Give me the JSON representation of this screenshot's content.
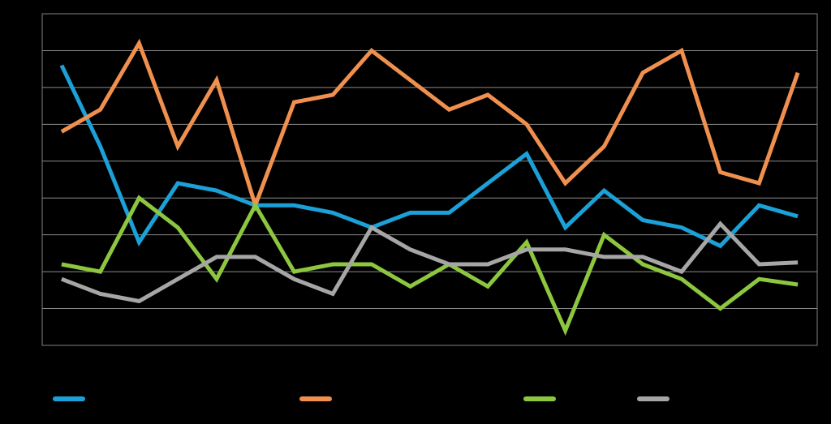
{
  "chart_data": {
    "type": "line",
    "title": "",
    "xlabel": "",
    "ylabel": "",
    "x": [
      1,
      2,
      3,
      4,
      5,
      6,
      7,
      8,
      9,
      10,
      11,
      12,
      13,
      14,
      15,
      16,
      17,
      18,
      19,
      20
    ],
    "ylim": [
      0,
      9
    ],
    "y_ticks": [
      0,
      1,
      2,
      3,
      4,
      5,
      6,
      7,
      8,
      9
    ],
    "grid": true,
    "legend_position": "bottom",
    "series": [
      {
        "color": "#1ba1d8",
        "values": [
          7.6,
          5.4,
          2.8,
          4.4,
          4.2,
          3.8,
          3.8,
          3.6,
          3.2,
          3.6,
          3.6,
          4.4,
          5.2,
          3.2,
          4.2,
          3.4,
          3.2,
          2.7,
          3.8,
          3.5
        ]
      },
      {
        "color": "#f0904f",
        "values": [
          5.8,
          6.4,
          8.2,
          5.4,
          7.2,
          3.8,
          6.6,
          6.8,
          8.0,
          7.2,
          6.4,
          6.8,
          6.0,
          4.4,
          5.4,
          7.4,
          8.0,
          4.7,
          4.4,
          7.4
        ]
      },
      {
        "color": "#8dc63f",
        "values": [
          2.2,
          2.0,
          4.0,
          3.2,
          1.8,
          3.8,
          2.0,
          2.2,
          2.2,
          1.6,
          2.2,
          1.6,
          2.8,
          0.4,
          3.0,
          2.2,
          1.8,
          1.0,
          1.8,
          1.65
        ]
      },
      {
        "color": "#a6a6a6",
        "values": [
          1.8,
          1.4,
          1.2,
          1.8,
          2.4,
          2.4,
          1.8,
          1.4,
          3.2,
          2.6,
          2.2,
          2.2,
          2.6,
          2.6,
          2.4,
          2.4,
          2.0,
          3.3,
          2.2,
          2.25
        ]
      }
    ]
  }
}
